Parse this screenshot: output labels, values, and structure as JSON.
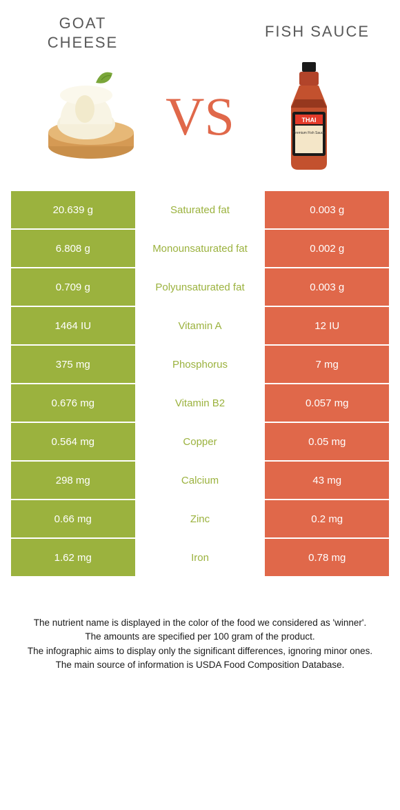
{
  "colors": {
    "left": "#9bb23e",
    "right": "#e0684a",
    "white": "#ffffff",
    "title": "#595959",
    "vs": "#e0684a"
  },
  "titles": {
    "left_line1": "GOAT",
    "left_line2": "CHEESE",
    "right": "FISH SAUCE",
    "vs": "VS"
  },
  "rows": [
    {
      "left": "20.639 g",
      "name": "Saturated fat",
      "right": "0.003 g",
      "winner": "left"
    },
    {
      "left": "6.808 g",
      "name": "Monounsaturated fat",
      "right": "0.002 g",
      "winner": "left"
    },
    {
      "left": "0.709 g",
      "name": "Polyunsaturated fat",
      "right": "0.003 g",
      "winner": "left"
    },
    {
      "left": "1464 IU",
      "name": "Vitamin A",
      "right": "12 IU",
      "winner": "left"
    },
    {
      "left": "375 mg",
      "name": "Phosphorus",
      "right": "7 mg",
      "winner": "left"
    },
    {
      "left": "0.676 mg",
      "name": "Vitamin B2",
      "right": "0.057 mg",
      "winner": "left"
    },
    {
      "left": "0.564 mg",
      "name": "Copper",
      "right": "0.05 mg",
      "winner": "left"
    },
    {
      "left": "298 mg",
      "name": "Calcium",
      "right": "43 mg",
      "winner": "left"
    },
    {
      "left": "0.66 mg",
      "name": "Zinc",
      "right": "0.2 mg",
      "winner": "left"
    },
    {
      "left": "1.62 mg",
      "name": "Iron",
      "right": "0.78 mg",
      "winner": "left"
    }
  ],
  "footer": {
    "l1": "The nutrient name is displayed in the color of the food we considered as 'winner'.",
    "l2": "The amounts are specified per 100 gram of the product.",
    "l3": "The infographic aims to display only the significant differences, ignoring minor ones.",
    "l4": "The main source of information is USDA Food Composition Database."
  }
}
